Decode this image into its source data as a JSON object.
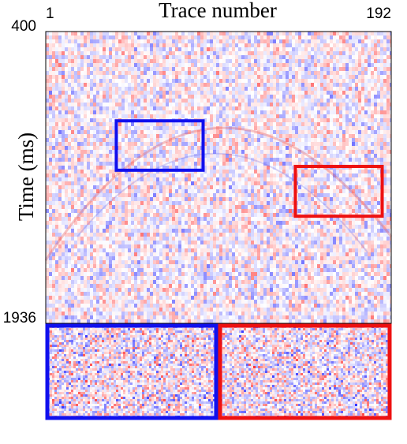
{
  "chart_data": {
    "type": "seismic",
    "xlabel": "Trace number",
    "ylabel": "Time (ms)",
    "xlim": [
      1,
      192
    ],
    "xticks": [
      1,
      192
    ],
    "ylim": [
      400,
      1936
    ],
    "yticks": [
      400,
      1936
    ],
    "highlights": [
      {
        "color": "#1010ee",
        "x": [
          40,
          88
        ],
        "y": [
          870,
          1130
        ]
      },
      {
        "color": "#ee1010",
        "x": [
          139,
          187
        ],
        "y": [
          1110,
          1372
        ]
      }
    ]
  }
}
